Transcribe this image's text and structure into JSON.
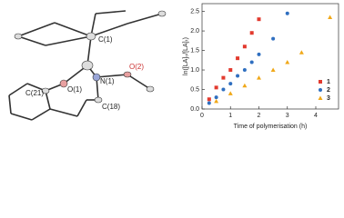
{
  "diagram": {
    "labels": [
      "C(1)",
      "O(2)",
      "N(1)",
      "O(1)",
      "C(21)",
      "C(18)"
    ]
  },
  "chart_data": {
    "type": "scatter",
    "x_label": "Time of polymerisation (h)",
    "y_label": "ln([LA]₀/[LA]ₜ)",
    "xlim": [
      0,
      4.8
    ],
    "xticks": [
      0,
      1,
      2,
      3,
      4
    ],
    "ylim": [
      0,
      2.7
    ],
    "yticks": [
      {
        "value": 0,
        "label": "0.0"
      },
      0.5,
      {
        "value": 1,
        "label": "1.0"
      },
      1.5,
      {
        "value": 2,
        "label": "2.0"
      },
      2.5
    ],
    "legend": "lower right",
    "series": [
      {
        "name": "1",
        "color": "#e23a2e",
        "marker": "square",
        "x": [
          0.25,
          0.5,
          0.75,
          1,
          1.25,
          1.5,
          1.75,
          2
        ],
        "values": [
          0.25,
          0.55,
          0.8,
          1.0,
          1.3,
          1.6,
          1.95,
          2.3
        ]
      },
      {
        "name": "2",
        "color": "#2f6fc0",
        "marker": "circle",
        "x": [
          0.25,
          0.5,
          0.75,
          1,
          1.25,
          1.5,
          1.75,
          2,
          2.5,
          3
        ],
        "values": [
          0.15,
          0.3,
          0.5,
          0.65,
          0.85,
          1.0,
          1.2,
          1.4,
          1.8,
          2.45
        ]
      },
      {
        "name": "3",
        "color": "#f0a818",
        "marker": "triangle",
        "x": [
          0.5,
          1,
          1.5,
          2,
          2.5,
          3,
          3.5,
          4.5
        ],
        "values": [
          0.2,
          0.4,
          0.6,
          0.8,
          1.0,
          1.2,
          1.45,
          2.35
        ]
      }
    ]
  }
}
